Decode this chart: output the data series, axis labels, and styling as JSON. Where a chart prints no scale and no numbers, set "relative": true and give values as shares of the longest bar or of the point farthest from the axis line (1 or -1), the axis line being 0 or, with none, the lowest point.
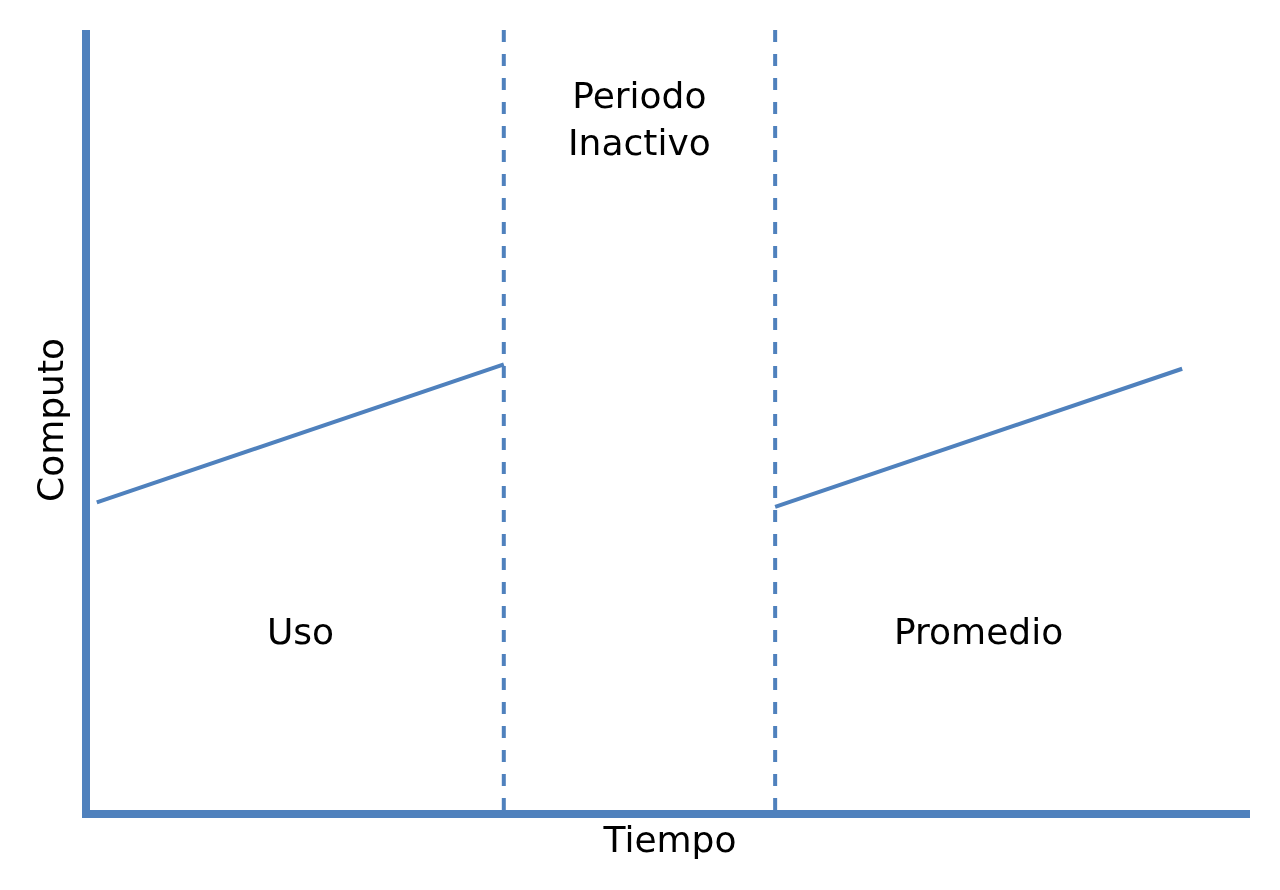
{
  "chart_data": {
    "type": "line",
    "relative": true,
    "xlabel": "Tiempo",
    "ylabel": "Computo",
    "categories": [
      null,
      null,
      null,
      null,
      null,
      null,
      null,
      null,
      null
    ],
    "series": [
      {
        "color": "#4f81bd",
        "values": [
          0.69,
          null,
          null,
          1.0,
          null,
          null,
          null,
          null,
          null
        ]
      },
      {
        "color": "#4f81bd",
        "values": [
          null,
          null,
          null,
          null,
          null,
          0.68,
          null,
          null,
          0.99
        ]
      }
    ],
    "annotations": [
      "Uso",
      "Periodo\nInactivo",
      "Promedio"
    ],
    "line_style": "solid"
  }
}
